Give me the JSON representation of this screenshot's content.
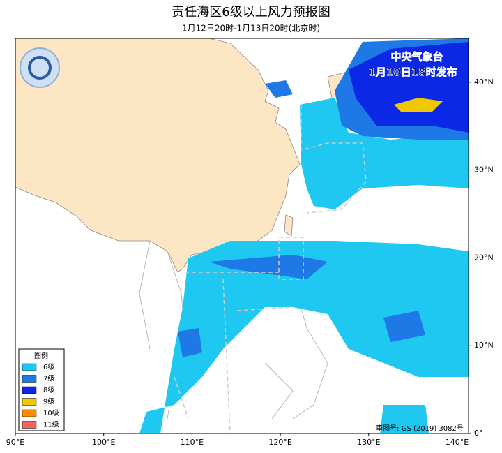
{
  "header": {
    "title": "责任海区6级以上风力预报图",
    "subtitle": "1月12日20时-1月13日20时(北京时)"
  },
  "publisher": {
    "name": "中央气象台",
    "time": "1月10日18时发布"
  },
  "map": {
    "extent": {
      "lon": [
        90,
        141.3
      ],
      "lat": [
        0,
        45
      ]
    },
    "lon_ticks": [
      {
        "value": 90,
        "label": "90°E"
      },
      {
        "value": 100,
        "label": "100°E"
      },
      {
        "value": 110,
        "label": "110°E"
      },
      {
        "value": 120,
        "label": "120°E"
      },
      {
        "value": 130,
        "label": "130°E"
      },
      {
        "value": 140,
        "label": "140°E"
      }
    ],
    "lat_ticks": [
      {
        "value": 0,
        "label": "0°"
      },
      {
        "value": 10,
        "label": "10°N"
      },
      {
        "value": 20,
        "label": "20°N"
      },
      {
        "value": 30,
        "label": "30°N"
      },
      {
        "value": 40,
        "label": "40°N"
      }
    ]
  },
  "legend": {
    "title": "图例",
    "items": [
      {
        "label": "6级",
        "color": "#1ec8f0"
      },
      {
        "label": "7级",
        "color": "#1e78e6"
      },
      {
        "label": "8级",
        "color": "#0a28e6"
      },
      {
        "label": "9级",
        "color": "#f0c800"
      },
      {
        "label": "10级",
        "color": "#ff8c00"
      },
      {
        "label": "11级",
        "color": "#f06464"
      }
    ]
  },
  "review_number": "审图号: GS (2019) 3082号"
}
